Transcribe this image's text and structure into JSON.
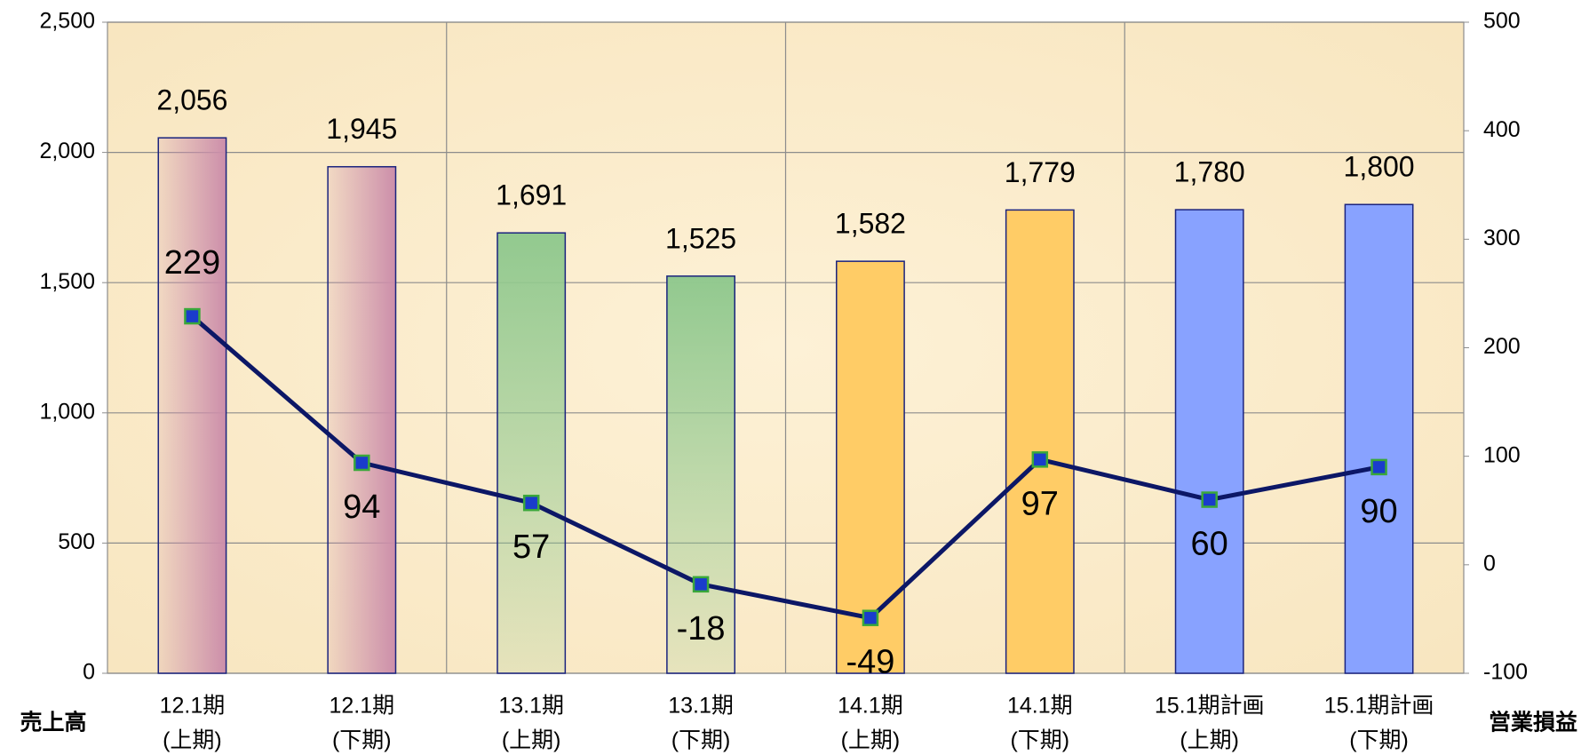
{
  "chart_data": {
    "type": "bar_line",
    "categories": [
      [
        "12.1期",
        "(上期)"
      ],
      [
        "12.1期",
        "(下期)"
      ],
      [
        "13.1期",
        "(上期)"
      ],
      [
        "13.1期",
        "(下期)"
      ],
      [
        "14.1期",
        "(上期)"
      ],
      [
        "14.1期",
        "(下期)"
      ],
      [
        "15.1期計画",
        "(上期)"
      ],
      [
        "15.1期計画",
        "(下期)"
      ]
    ],
    "y_label": "売上高",
    "y2_label": "営業損益",
    "bars": {
      "values": [
        2056,
        1945,
        1691,
        1525,
        1582,
        1779,
        1780,
        1800
      ],
      "value_labels": [
        "2,056",
        "1,945",
        "1,691",
        "1,525",
        "1,582",
        "1,779",
        "1,780",
        "1,800"
      ],
      "colors": [
        "#cc8eaa",
        "#cc8eaa",
        "#92c98f",
        "#92c98f",
        "#ffcc66",
        "#ffcc66",
        "#88a2ff",
        "#88a2ff"
      ],
      "gradient": [
        true,
        true,
        true,
        true,
        false,
        false,
        false,
        false
      ],
      "label_color": "#1f3fcc"
    },
    "line": {
      "values": [
        229,
        94,
        57,
        -18,
        -49,
        97,
        60,
        90
      ],
      "axis": "y2",
      "color": "#0c1766",
      "marker_color": "#1a3ccc",
      "marker_edge": "#3aa83a",
      "label_color": "#000000",
      "negative_label_color": "#ff0000"
    },
    "ylim": [
      0,
      2500
    ],
    "yticks": [
      0,
      500,
      {
        "value": 1000,
        "label": "1,000"
      },
      {
        "value": 1500,
        "label": "1,500"
      },
      {
        "value": 2000,
        "label": "2,000"
      },
      {
        "value": 2500,
        "label": "2,500"
      }
    ],
    "y2lim": [
      -100,
      500
    ],
    "y2ticks": [
      -100,
      0,
      100,
      200,
      300,
      400,
      500
    ],
    "grid": true
  }
}
